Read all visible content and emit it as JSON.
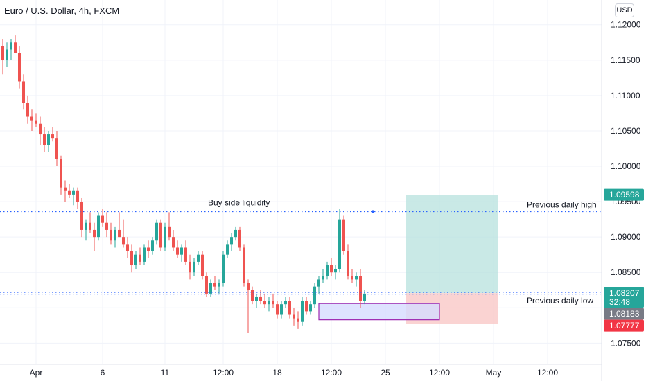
{
  "header": {
    "title": "Euro / U.S. Dollar, 4h, FXCM",
    "currency_label": "USD"
  },
  "colors": {
    "up": "#26a69a",
    "down": "#ef5350",
    "profit_zone": "#b2dfdb",
    "loss_zone": "#f9c8c7",
    "box_fill": "#d6dcff",
    "box_stroke": "#9c27b0",
    "dotted_line": "#2962ff",
    "grid": "#f0f3fa"
  },
  "chart_data": {
    "type": "candlestick",
    "ylim": [
      1.072,
      1.1235
    ],
    "y_ticks": [
      "1.12000",
      "1.11500",
      "1.11000",
      "1.10500",
      "1.10000",
      "1.09500",
      "1.09000",
      "1.08500",
      "1.08000",
      "1.07500"
    ],
    "y_tick_values": [
      1.12,
      1.115,
      1.11,
      1.105,
      1.1,
      1.095,
      1.09,
      1.085,
      1.08,
      1.075
    ],
    "x_ticks": [
      {
        "label": "Apr",
        "bar": 8
      },
      {
        "label": "6",
        "bar": 24
      },
      {
        "label": "11",
        "bar": 39
      },
      {
        "label": "12:00",
        "bar": 53
      },
      {
        "label": "18",
        "bar": 66
      },
      {
        "label": "12:00",
        "bar": 79
      },
      {
        "label": "25",
        "bar": 92
      },
      {
        "label": "12:00",
        "bar": 105
      },
      {
        "label": "May",
        "bar": 118
      },
      {
        "label": "12:00",
        "bar": 131
      }
    ],
    "series": [
      {
        "values": [
          [
            1.117,
            1.118,
            1.113,
            1.115
          ],
          [
            1.115,
            1.1175,
            1.114,
            1.1165
          ],
          [
            1.1165,
            1.118,
            1.115,
            1.1175
          ],
          [
            1.1175,
            1.1185,
            1.116,
            1.116
          ],
          [
            1.116,
            1.117,
            1.111,
            1.112
          ],
          [
            1.112,
            1.113,
            1.108,
            1.109
          ],
          [
            1.109,
            1.11,
            1.106,
            1.107
          ],
          [
            1.107,
            1.108,
            1.105,
            1.1065
          ],
          [
            1.1065,
            1.1075,
            1.1055,
            1.106
          ],
          [
            1.106,
            1.107,
            1.103,
            1.1045
          ],
          [
            1.1045,
            1.1055,
            1.102,
            1.103
          ],
          [
            1.103,
            1.105,
            1.102,
            1.1045
          ],
          [
            1.1045,
            1.1055,
            1.1035,
            1.104
          ],
          [
            1.104,
            1.105,
            1.1,
            1.101
          ],
          [
            1.101,
            1.1015,
            1.096,
            1.097
          ],
          [
            1.097,
            1.098,
            1.095,
            1.0965
          ],
          [
            1.0965,
            1.0975,
            1.0955,
            1.096
          ],
          [
            1.096,
            1.097,
            1.0945,
            1.0965
          ],
          [
            1.0965,
            1.097,
            1.094,
            1.095
          ],
          [
            1.095,
            1.0955,
            1.09,
            1.091
          ],
          [
            1.091,
            1.0925,
            1.0895,
            1.092
          ],
          [
            1.092,
            1.0935,
            1.0905,
            1.091
          ],
          [
            1.091,
            1.092,
            1.088,
            1.09
          ],
          [
            1.09,
            1.0935,
            1.0895,
            1.093
          ],
          [
            1.093,
            1.094,
            1.0915,
            1.092
          ],
          [
            1.092,
            1.0935,
            1.09,
            1.091
          ],
          [
            1.091,
            1.092,
            1.089,
            1.0895
          ],
          [
            1.0895,
            1.0915,
            1.0885,
            1.091
          ],
          [
            1.091,
            1.0935,
            1.09,
            1.09
          ],
          [
            1.09,
            1.0925,
            1.0885,
            1.089
          ],
          [
            1.089,
            1.09,
            1.087,
            1.088
          ],
          [
            1.088,
            1.089,
            1.085,
            1.086
          ],
          [
            1.086,
            1.088,
            1.0855,
            1.0875
          ],
          [
            1.0875,
            1.0885,
            1.086,
            1.0865
          ],
          [
            1.0865,
            1.089,
            1.086,
            1.0885
          ],
          [
            1.0885,
            1.0895,
            1.087,
            1.088
          ],
          [
            1.088,
            1.09,
            1.0875,
            1.0895
          ],
          [
            1.0895,
            1.0925,
            1.089,
            1.092
          ],
          [
            1.092,
            1.0925,
            1.088,
            1.0885
          ],
          [
            1.0885,
            1.092,
            1.088,
            1.0915
          ],
          [
            1.0915,
            1.0935,
            1.0895,
            1.09
          ],
          [
            1.09,
            1.091,
            1.088,
            1.0885
          ],
          [
            1.0885,
            1.0895,
            1.087,
            1.0875
          ],
          [
            1.0875,
            1.089,
            1.0865,
            1.0885
          ],
          [
            1.0885,
            1.0895,
            1.086,
            1.0865
          ],
          [
            1.0865,
            1.0875,
            1.084,
            1.085
          ],
          [
            1.085,
            1.087,
            1.0845,
            1.0865
          ],
          [
            1.0865,
            1.088,
            1.086,
            1.0875
          ],
          [
            1.0875,
            1.088,
            1.084,
            1.0845
          ],
          [
            1.0845,
            1.085,
            1.0815,
            1.082
          ],
          [
            1.082,
            1.084,
            1.0815,
            1.0835
          ],
          [
            1.0835,
            1.0845,
            1.0825,
            1.083
          ],
          [
            1.083,
            1.084,
            1.082,
            1.0835
          ],
          [
            1.0835,
            1.088,
            1.083,
            1.0875
          ],
          [
            1.0875,
            1.0895,
            1.087,
            1.089
          ],
          [
            1.089,
            1.0905,
            1.088,
            1.09
          ],
          [
            1.09,
            1.0915,
            1.0895,
            1.091
          ],
          [
            1.091,
            1.0915,
            1.088,
            1.0885
          ],
          [
            1.0885,
            1.089,
            1.083,
            1.0835
          ],
          [
            1.0835,
            1.084,
            1.0765,
            1.0825
          ],
          [
            1.0825,
            1.083,
            1.0805,
            1.081
          ],
          [
            1.081,
            1.082,
            1.08,
            1.0815
          ],
          [
            1.0815,
            1.0825,
            1.0805,
            1.081
          ],
          [
            1.081,
            1.082,
            1.08,
            1.0805
          ],
          [
            1.0805,
            1.0815,
            1.0795,
            1.081
          ],
          [
            1.081,
            1.082,
            1.08,
            1.0805
          ],
          [
            1.0805,
            1.081,
            1.0785,
            1.079
          ],
          [
            1.079,
            1.081,
            1.0785,
            1.0805
          ],
          [
            1.0805,
            1.0815,
            1.08,
            1.081
          ],
          [
            1.081,
            1.0815,
            1.0785,
            1.079
          ],
          [
            1.079,
            1.08,
            1.0775,
            1.0785
          ],
          [
            1.0785,
            1.0795,
            1.077,
            1.078
          ],
          [
            1.078,
            1.0815,
            1.0775,
            1.081
          ],
          [
            1.081,
            1.0815,
            1.079,
            1.0795
          ],
          [
            1.0795,
            1.081,
            1.079,
            1.0805
          ],
          [
            1.0805,
            1.0835,
            1.08,
            1.083
          ],
          [
            1.083,
            1.0845,
            1.082,
            1.084
          ],
          [
            1.084,
            1.0855,
            1.0835,
            1.0845
          ],
          [
            1.0845,
            1.0865,
            1.084,
            1.086
          ],
          [
            1.086,
            1.087,
            1.0845,
            1.085
          ],
          [
            1.085,
            1.086,
            1.084,
            1.0855
          ],
          [
            1.0855,
            1.094,
            1.085,
            1.0925
          ],
          [
            1.0925,
            1.093,
            1.0875,
            1.088
          ],
          [
            1.088,
            1.089,
            1.084,
            1.0845
          ],
          [
            1.0845,
            1.0855,
            1.0835,
            1.084
          ],
          [
            1.084,
            1.085,
            1.083,
            1.0845
          ],
          [
            1.0845,
            1.0855,
            1.08,
            1.081
          ],
          [
            1.081,
            1.0825,
            1.0805,
            1.082
          ]
        ]
      }
    ],
    "hlines": [
      {
        "label": "Buy side liquidity",
        "price": 1.0936
      },
      {
        "label": "Previous daily high",
        "price": 1.0936
      },
      {
        "label": "Previous daily low",
        "price": 1.0822
      }
    ],
    "position": {
      "entry": 1.08207,
      "target": 1.09598,
      "stop": 1.07777
    },
    "price_badges": [
      {
        "text": "1.09598",
        "value": 1.09598,
        "color": "#26a69a"
      },
      {
        "text": "1.08207",
        "value": 1.08207,
        "color": "#26a69a"
      },
      {
        "text": "32:48",
        "value": 1.08207,
        "color": "#26a69a"
      },
      {
        "text": "1.08183",
        "value": 1.08183,
        "color": "#787b86"
      },
      {
        "text": "1.07777",
        "value": 1.07777,
        "color": "#f23645"
      }
    ]
  }
}
